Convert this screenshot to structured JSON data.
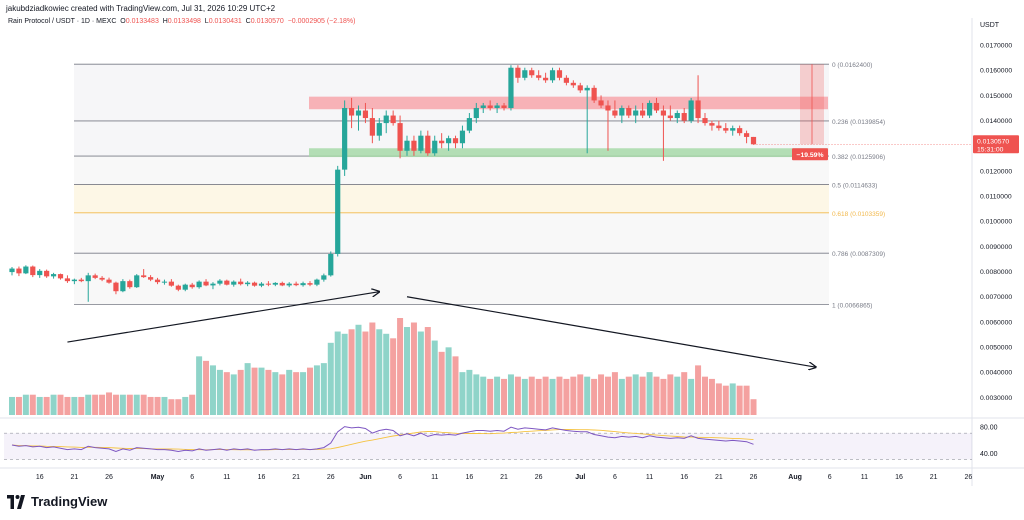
{
  "header": {
    "credit": "jakubdziadkowiec created with TradingView.com, Jul 31, 2026 10:29 UTC+2",
    "symbol": "Rain Protocol / USDT · 1D · MEXC",
    "open_label": "O",
    "open": "0.0133483",
    "high_label": "H",
    "high": "0.0133498",
    "low_label": "L",
    "low": "0.0130431",
    "close_label": "C",
    "close": "0.0130570",
    "change": "−0.0002905 (−2.18%)"
  },
  "footer": {
    "brand": "TradingView"
  },
  "colors": {
    "up": "#26a69a",
    "down": "#ef5350",
    "vol_up": "#8fd4c9",
    "vol_down": "#f4a1a0",
    "rsi": "#7e57c2",
    "rsi_ma": "#f5c341",
    "resistance_zone": "#f7a6ab",
    "support_zone": "#a7d9a9"
  },
  "chart_data": {
    "type": "candlestick",
    "currency_label": "USDT",
    "price_axis": {
      "ylim": [
        0.0025,
        0.0174
      ],
      "ticks": [
        "0.0170000",
        "0.0160000",
        "0.0150000",
        "0.0140000",
        "0.0130000",
        "0.0120000",
        "0.0110000",
        "0.0100000",
        "0.0090000",
        "0.0080000",
        "0.0070000",
        "0.0060000",
        "0.0050000",
        "0.0040000",
        "0.0030000"
      ]
    },
    "time_axis": {
      "ticks": [
        "16",
        "21",
        "26",
        "May",
        "6",
        "11",
        "16",
        "21",
        "26",
        "Jun",
        "6",
        "11",
        "16",
        "21",
        "26",
        "Jul",
        "6",
        "11",
        "16",
        "21",
        "26",
        "Aug",
        "6",
        "11",
        "16",
        "21",
        "26"
      ]
    },
    "last_price": {
      "value": 0.013057,
      "label": "0.0130570",
      "countdown": "15:31:00"
    },
    "measure_label": "−19.59%",
    "fibonacci": [
      {
        "level": "0",
        "price": 0.01624,
        "label": "0 (0.0162400)",
        "color": "#787b86"
      },
      {
        "level": "0.236",
        "price": 0.0139854,
        "label": "0.236 (0.0139854)",
        "color": "#787b86"
      },
      {
        "level": "0.382",
        "price": 0.0125906,
        "label": "0.382 (0.0125906)",
        "color": "#787b86"
      },
      {
        "level": "0.5",
        "price": 0.0114633,
        "label": "0.5 (0.0114633)",
        "color": "#787b86"
      },
      {
        "level": "0.618",
        "price": 0.0103359,
        "label": "0.618 (0.0103359)",
        "color": "#f2b84b"
      },
      {
        "level": "0.786",
        "price": 0.0087309,
        "label": "0.786 (0.0087309)",
        "color": "#787b86"
      },
      {
        "level": "1",
        "price": 0.0066865,
        "label": "1 (0.0066865)",
        "color": "#787b86"
      }
    ],
    "zones": [
      {
        "name": "resistance",
        "low": 0.01445,
        "high": 0.01495
      },
      {
        "name": "support",
        "low": 0.01255,
        "high": 0.0129
      }
    ],
    "volume_trend_arrows": [
      {
        "from": [
          8,
          0.0052
        ],
        "to": [
          53,
          0.0072
        ]
      },
      {
        "from": [
          57,
          0.007
        ],
        "to": [
          116,
          0.0042
        ]
      }
    ],
    "candles": [
      {
        "o": 0.00798,
        "h": 0.00818,
        "l": 0.00785,
        "c": 0.00812,
        "v": 0.0033
      },
      {
        "o": 0.00812,
        "h": 0.0082,
        "l": 0.00782,
        "c": 0.00793,
        "v": 0.0033
      },
      {
        "o": 0.00793,
        "h": 0.00825,
        "l": 0.0079,
        "c": 0.0082,
        "v": 0.0034
      },
      {
        "o": 0.0082,
        "h": 0.00824,
        "l": 0.00778,
        "c": 0.00786,
        "v": 0.0034
      },
      {
        "o": 0.00786,
        "h": 0.0081,
        "l": 0.00775,
        "c": 0.00803,
        "v": 0.0033
      },
      {
        "o": 0.00803,
        "h": 0.00808,
        "l": 0.00775,
        "c": 0.00781,
        "v": 0.0033
      },
      {
        "o": 0.00781,
        "h": 0.00795,
        "l": 0.00772,
        "c": 0.0079,
        "v": 0.0034
      },
      {
        "o": 0.0079,
        "h": 0.00792,
        "l": 0.00768,
        "c": 0.00773,
        "v": 0.0034
      },
      {
        "o": 0.00773,
        "h": 0.00785,
        "l": 0.00755,
        "c": 0.00762,
        "v": 0.0033
      },
      {
        "o": 0.00762,
        "h": 0.00772,
        "l": 0.0075,
        "c": 0.00768,
        "v": 0.0033
      },
      {
        "o": 0.00768,
        "h": 0.00775,
        "l": 0.00758,
        "c": 0.00762,
        "v": 0.0033
      },
      {
        "o": 0.00762,
        "h": 0.00795,
        "l": 0.0068,
        "c": 0.00785,
        "v": 0.0034
      },
      {
        "o": 0.00785,
        "h": 0.00792,
        "l": 0.0077,
        "c": 0.00775,
        "v": 0.0034
      },
      {
        "o": 0.00775,
        "h": 0.00782,
        "l": 0.00762,
        "c": 0.00768,
        "v": 0.0034
      },
      {
        "o": 0.00768,
        "h": 0.00776,
        "l": 0.00752,
        "c": 0.00756,
        "v": 0.0035
      },
      {
        "o": 0.00756,
        "h": 0.0076,
        "l": 0.0071,
        "c": 0.00722,
        "v": 0.0034
      },
      {
        "o": 0.00722,
        "h": 0.0077,
        "l": 0.00718,
        "c": 0.00762,
        "v": 0.0034
      },
      {
        "o": 0.00762,
        "h": 0.00768,
        "l": 0.00732,
        "c": 0.00738,
        "v": 0.0034
      },
      {
        "o": 0.00738,
        "h": 0.0079,
        "l": 0.00735,
        "c": 0.00785,
        "v": 0.0034
      },
      {
        "o": 0.00785,
        "h": 0.0081,
        "l": 0.00775,
        "c": 0.00778,
        "v": 0.0034
      },
      {
        "o": 0.00778,
        "h": 0.00786,
        "l": 0.00762,
        "c": 0.00768,
        "v": 0.0033
      },
      {
        "o": 0.00768,
        "h": 0.00775,
        "l": 0.0075,
        "c": 0.00758,
        "v": 0.0033
      },
      {
        "o": 0.00758,
        "h": 0.00768,
        "l": 0.00748,
        "c": 0.0076,
        "v": 0.0033
      },
      {
        "o": 0.0076,
        "h": 0.0077,
        "l": 0.0074,
        "c": 0.00744,
        "v": 0.0032
      },
      {
        "o": 0.00744,
        "h": 0.00748,
        "l": 0.00722,
        "c": 0.00728,
        "v": 0.0032
      },
      {
        "o": 0.00728,
        "h": 0.00752,
        "l": 0.00722,
        "c": 0.00748,
        "v": 0.0033
      },
      {
        "o": 0.00748,
        "h": 0.00755,
        "l": 0.00732,
        "c": 0.00738,
        "v": 0.0034
      },
      {
        "o": 0.00738,
        "h": 0.00765,
        "l": 0.00732,
        "c": 0.0076,
        "v": 0.0051
      },
      {
        "o": 0.0076,
        "h": 0.0077,
        "l": 0.00742,
        "c": 0.00745,
        "v": 0.0049
      },
      {
        "o": 0.00745,
        "h": 0.00758,
        "l": 0.0073,
        "c": 0.00752,
        "v": 0.0047
      },
      {
        "o": 0.00752,
        "h": 0.0077,
        "l": 0.00745,
        "c": 0.00764,
        "v": 0.0045
      },
      {
        "o": 0.00764,
        "h": 0.00768,
        "l": 0.00745,
        "c": 0.00748,
        "v": 0.0044
      },
      {
        "o": 0.00748,
        "h": 0.00765,
        "l": 0.0074,
        "c": 0.0076,
        "v": 0.0043
      },
      {
        "o": 0.0076,
        "h": 0.00772,
        "l": 0.00745,
        "c": 0.0075,
        "v": 0.0045
      },
      {
        "o": 0.0075,
        "h": 0.00762,
        "l": 0.00742,
        "c": 0.00756,
        "v": 0.0048
      },
      {
        "o": 0.00756,
        "h": 0.0076,
        "l": 0.0074,
        "c": 0.00744,
        "v": 0.0046
      },
      {
        "o": 0.00744,
        "h": 0.00758,
        "l": 0.00738,
        "c": 0.00752,
        "v": 0.0046
      },
      {
        "o": 0.00752,
        "h": 0.00762,
        "l": 0.00742,
        "c": 0.00748,
        "v": 0.0045
      },
      {
        "o": 0.00748,
        "h": 0.00758,
        "l": 0.00742,
        "c": 0.00755,
        "v": 0.0044
      },
      {
        "o": 0.00755,
        "h": 0.0076,
        "l": 0.00742,
        "c": 0.00745,
        "v": 0.0043
      },
      {
        "o": 0.00745,
        "h": 0.00758,
        "l": 0.00738,
        "c": 0.00752,
        "v": 0.0045
      },
      {
        "o": 0.00752,
        "h": 0.0076,
        "l": 0.00742,
        "c": 0.00746,
        "v": 0.0044
      },
      {
        "o": 0.00746,
        "h": 0.0076,
        "l": 0.0074,
        "c": 0.00754,
        "v": 0.0044
      },
      {
        "o": 0.00754,
        "h": 0.00762,
        "l": 0.00742,
        "c": 0.00748,
        "v": 0.0046
      },
      {
        "o": 0.00748,
        "h": 0.00772,
        "l": 0.00742,
        "c": 0.00768,
        "v": 0.0047
      },
      {
        "o": 0.00768,
        "h": 0.00792,
        "l": 0.0076,
        "c": 0.00785,
        "v": 0.0048
      },
      {
        "o": 0.00785,
        "h": 0.0088,
        "l": 0.0078,
        "c": 0.0087,
        "v": 0.0057
      },
      {
        "o": 0.0087,
        "h": 0.0122,
        "l": 0.0086,
        "c": 0.01205,
        "v": 0.0062
      },
      {
        "o": 0.01205,
        "h": 0.0148,
        "l": 0.0118,
        "c": 0.0145,
        "v": 0.0061
      },
      {
        "o": 0.0145,
        "h": 0.0149,
        "l": 0.0137,
        "c": 0.0142,
        "v": 0.0063
      },
      {
        "o": 0.0142,
        "h": 0.0146,
        "l": 0.0136,
        "c": 0.0144,
        "v": 0.0065
      },
      {
        "o": 0.0144,
        "h": 0.0147,
        "l": 0.0139,
        "c": 0.0141,
        "v": 0.0062
      },
      {
        "o": 0.0141,
        "h": 0.0145,
        "l": 0.0131,
        "c": 0.0134,
        "v": 0.0066
      },
      {
        "o": 0.0134,
        "h": 0.0141,
        "l": 0.0132,
        "c": 0.0139,
        "v": 0.0063
      },
      {
        "o": 0.0139,
        "h": 0.0144,
        "l": 0.0135,
        "c": 0.0142,
        "v": 0.0061
      },
      {
        "o": 0.0142,
        "h": 0.0144,
        "l": 0.0138,
        "c": 0.0139,
        "v": 0.0059
      },
      {
        "o": 0.0139,
        "h": 0.0142,
        "l": 0.0125,
        "c": 0.0128,
        "v": 0.0068
      },
      {
        "o": 0.0128,
        "h": 0.0134,
        "l": 0.0126,
        "c": 0.0132,
        "v": 0.0064
      },
      {
        "o": 0.0132,
        "h": 0.0134,
        "l": 0.0126,
        "c": 0.0128,
        "v": 0.0066
      },
      {
        "o": 0.0128,
        "h": 0.0136,
        "l": 0.0127,
        "c": 0.0134,
        "v": 0.0062
      },
      {
        "o": 0.0134,
        "h": 0.0136,
        "l": 0.0126,
        "c": 0.0127,
        "v": 0.0064
      },
      {
        "o": 0.0127,
        "h": 0.0134,
        "l": 0.0126,
        "c": 0.0132,
        "v": 0.0058
      },
      {
        "o": 0.0132,
        "h": 0.0135,
        "l": 0.0129,
        "c": 0.0131,
        "v": 0.0053
      },
      {
        "o": 0.0131,
        "h": 0.0134,
        "l": 0.0128,
        "c": 0.0133,
        "v": 0.0055
      },
      {
        "o": 0.0133,
        "h": 0.0134,
        "l": 0.0129,
        "c": 0.0131,
        "v": 0.0051
      },
      {
        "o": 0.0131,
        "h": 0.0138,
        "l": 0.0129,
        "c": 0.0136,
        "v": 0.0044
      },
      {
        "o": 0.0136,
        "h": 0.0143,
        "l": 0.0135,
        "c": 0.0141,
        "v": 0.0045
      },
      {
        "o": 0.0141,
        "h": 0.0147,
        "l": 0.0139,
        "c": 0.0145,
        "v": 0.0043
      },
      {
        "o": 0.0145,
        "h": 0.0147,
        "l": 0.0143,
        "c": 0.0146,
        "v": 0.0042
      },
      {
        "o": 0.0146,
        "h": 0.0148,
        "l": 0.0144,
        "c": 0.0145,
        "v": 0.0041
      },
      {
        "o": 0.0145,
        "h": 0.0147,
        "l": 0.0143,
        "c": 0.0146,
        "v": 0.0042
      },
      {
        "o": 0.0146,
        "h": 0.0147,
        "l": 0.0144,
        "c": 0.0145,
        "v": 0.0041
      },
      {
        "o": 0.0145,
        "h": 0.0162,
        "l": 0.0144,
        "c": 0.0161,
        "v": 0.0043
      },
      {
        "o": 0.0161,
        "h": 0.0162,
        "l": 0.0155,
        "c": 0.0157,
        "v": 0.0042
      },
      {
        "o": 0.0157,
        "h": 0.0161,
        "l": 0.0156,
        "c": 0.016,
        "v": 0.0041
      },
      {
        "o": 0.016,
        "h": 0.0161,
        "l": 0.0157,
        "c": 0.0158,
        "v": 0.0042
      },
      {
        "o": 0.0158,
        "h": 0.016,
        "l": 0.0156,
        "c": 0.0157,
        "v": 0.0041
      },
      {
        "o": 0.0157,
        "h": 0.0159,
        "l": 0.0155,
        "c": 0.0156,
        "v": 0.0042
      },
      {
        "o": 0.0156,
        "h": 0.0161,
        "l": 0.0155,
        "c": 0.016,
        "v": 0.0041
      },
      {
        "o": 0.016,
        "h": 0.0161,
        "l": 0.0156,
        "c": 0.0157,
        "v": 0.0042
      },
      {
        "o": 0.0157,
        "h": 0.0158,
        "l": 0.0154,
        "c": 0.0155,
        "v": 0.0041
      },
      {
        "o": 0.0155,
        "h": 0.0156,
        "l": 0.0153,
        "c": 0.0154,
        "v": 0.0042
      },
      {
        "o": 0.0154,
        "h": 0.0155,
        "l": 0.0151,
        "c": 0.0152,
        "v": 0.0043
      },
      {
        "o": 0.0152,
        "h": 0.0154,
        "l": 0.0127,
        "c": 0.0153,
        "v": 0.0042
      },
      {
        "o": 0.0153,
        "h": 0.0154,
        "l": 0.0147,
        "c": 0.0148,
        "v": 0.0041
      },
      {
        "o": 0.0148,
        "h": 0.015,
        "l": 0.0145,
        "c": 0.0146,
        "v": 0.0043
      },
      {
        "o": 0.0146,
        "h": 0.0148,
        "l": 0.0128,
        "c": 0.0144,
        "v": 0.0042
      },
      {
        "o": 0.0144,
        "h": 0.0148,
        "l": 0.0141,
        "c": 0.0142,
        "v": 0.0044
      },
      {
        "o": 0.0142,
        "h": 0.0146,
        "l": 0.0139,
        "c": 0.0145,
        "v": 0.0041
      },
      {
        "o": 0.0145,
        "h": 0.0146,
        "l": 0.0141,
        "c": 0.0142,
        "v": 0.0042
      },
      {
        "o": 0.0142,
        "h": 0.0146,
        "l": 0.0139,
        "c": 0.0144,
        "v": 0.0043
      },
      {
        "o": 0.0144,
        "h": 0.0147,
        "l": 0.0141,
        "c": 0.0142,
        "v": 0.0042
      },
      {
        "o": 0.0142,
        "h": 0.0148,
        "l": 0.0141,
        "c": 0.0147,
        "v": 0.0044
      },
      {
        "o": 0.0147,
        "h": 0.0149,
        "l": 0.0143,
        "c": 0.0144,
        "v": 0.0042
      },
      {
        "o": 0.0144,
        "h": 0.0146,
        "l": 0.0124,
        "c": 0.0142,
        "v": 0.0041
      },
      {
        "o": 0.0142,
        "h": 0.0146,
        "l": 0.014,
        "c": 0.0141,
        "v": 0.0043
      },
      {
        "o": 0.0141,
        "h": 0.0144,
        "l": 0.0139,
        "c": 0.0143,
        "v": 0.0042
      },
      {
        "o": 0.0143,
        "h": 0.0145,
        "l": 0.0139,
        "c": 0.014,
        "v": 0.0044
      },
      {
        "o": 0.014,
        "h": 0.0149,
        "l": 0.0139,
        "c": 0.0148,
        "v": 0.0041
      },
      {
        "o": 0.0148,
        "h": 0.0158,
        "l": 0.0139,
        "c": 0.0141,
        "v": 0.0047
      },
      {
        "o": 0.0141,
        "h": 0.0143,
        "l": 0.0138,
        "c": 0.0139,
        "v": 0.0042
      },
      {
        "o": 0.0139,
        "h": 0.014,
        "l": 0.0136,
        "c": 0.0138,
        "v": 0.0041
      },
      {
        "o": 0.0138,
        "h": 0.014,
        "l": 0.0136,
        "c": 0.0137,
        "v": 0.0039
      },
      {
        "o": 0.0137,
        "h": 0.0139,
        "l": 0.0135,
        "c": 0.0136,
        "v": 0.0038
      },
      {
        "o": 0.0136,
        "h": 0.0138,
        "l": 0.0134,
        "c": 0.0137,
        "v": 0.0039
      },
      {
        "o": 0.0137,
        "h": 0.0138,
        "l": 0.0134,
        "c": 0.0135,
        "v": 0.0038
      },
      {
        "o": 0.0135,
        "h": 0.0136,
        "l": 0.0131,
        "c": 0.01335,
        "v": 0.0038
      },
      {
        "o": 0.01335,
        "h": 0.01335,
        "l": 0.01304,
        "c": 0.013057,
        "v": 0.0032
      }
    ],
    "rsi": {
      "label_high": "80.00",
      "label_low": "40.00",
      "upper": 70,
      "lower": 30,
      "ylim": [
        20,
        90
      ],
      "values": [
        52,
        50,
        51,
        49,
        50,
        48,
        49,
        47,
        45,
        46,
        45,
        50,
        48,
        47,
        46,
        42,
        46,
        44,
        48,
        47,
        46,
        45,
        45,
        44,
        42,
        44,
        43,
        46,
        44,
        45,
        46,
        44,
        46,
        45,
        46,
        44,
        45,
        45,
        46,
        45,
        46,
        45,
        46,
        45,
        46,
        48,
        55,
        72,
        80,
        78,
        79,
        77,
        70,
        74,
        76,
        74,
        66,
        69,
        66,
        70,
        65,
        68,
        67,
        68,
        67,
        70,
        72,
        74,
        74,
        73,
        74,
        73,
        79,
        76,
        78,
        77,
        76,
        75,
        78,
        76,
        74,
        73,
        72,
        72,
        68,
        66,
        64,
        63,
        65,
        64,
        65,
        63,
        66,
        64,
        63,
        62,
        63,
        62,
        66,
        62,
        61,
        60,
        59,
        58,
        59,
        58,
        57,
        53
      ]
    }
  }
}
